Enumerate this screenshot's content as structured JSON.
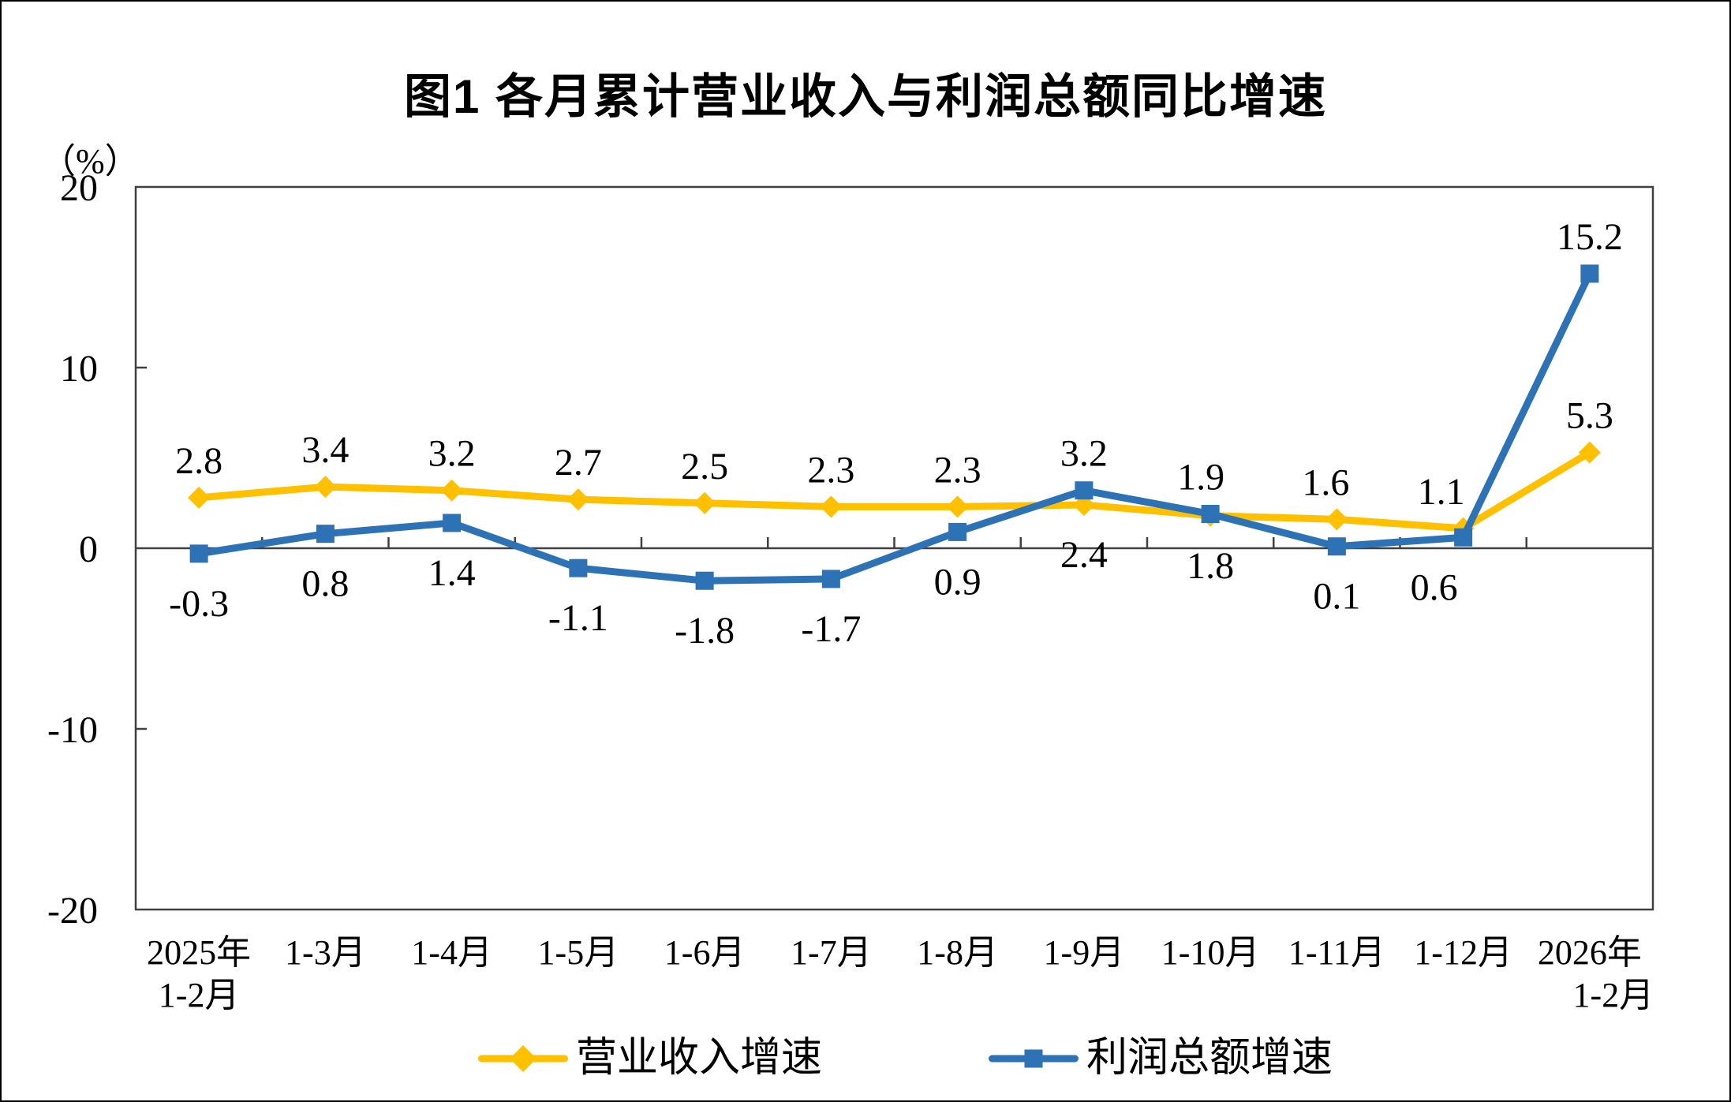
{
  "chart_data": {
    "type": "line",
    "title": "图1 各月累计营业收入与利润总额同比增速",
    "y_axis_unit_label": "（%）",
    "ylim": [
      -20,
      20
    ],
    "y_ticks": [
      20,
      10,
      0,
      -10,
      -20
    ],
    "grid": false,
    "legend_position": "bottom",
    "categories": [
      {
        "lines": [
          "2025年",
          "1-2月"
        ],
        "line2_dx": 0
      },
      {
        "lines": [
          "1-3月"
        ]
      },
      {
        "lines": [
          "1-4月"
        ]
      },
      {
        "lines": [
          "1-5月"
        ]
      },
      {
        "lines": [
          "1-6月"
        ]
      },
      {
        "lines": [
          "1-7月"
        ]
      },
      {
        "lines": [
          "1-8月"
        ]
      },
      {
        "lines": [
          "1-9月"
        ]
      },
      {
        "lines": [
          "1-10月"
        ]
      },
      {
        "lines": [
          "1-11月"
        ]
      },
      {
        "lines": [
          "1-12月"
        ]
      },
      {
        "lines": [
          "2026年",
          "1-2月"
        ],
        "line2_dx": 30
      }
    ],
    "series": [
      {
        "name": "营业收入增速",
        "color": "#FFC000",
        "marker": "diamond",
        "values": [
          2.8,
          3.4,
          3.2,
          2.7,
          2.5,
          2.3,
          2.3,
          2.4,
          1.8,
          1.6,
          1.1,
          5.3
        ],
        "label_side": [
          "above",
          "above",
          "above",
          "above",
          "above",
          "above",
          "above",
          "below",
          "below",
          "above",
          "above",
          "above"
        ],
        "label_dx": [
          0,
          0,
          0,
          0,
          0,
          0,
          0,
          0,
          0,
          -14,
          -28,
          0
        ]
      },
      {
        "name": "利润总额增速",
        "color": "#2E72B6",
        "marker": "square",
        "values": [
          -0.3,
          0.8,
          1.4,
          -1.1,
          -1.8,
          -1.7,
          0.9,
          3.2,
          1.9,
          0.1,
          0.6,
          15.2
        ],
        "label_side": [
          "below",
          "below",
          "below",
          "below",
          "below",
          "below",
          "below",
          "above",
          "above",
          "below",
          "below",
          "above"
        ],
        "label_dx": [
          0,
          0,
          0,
          0,
          0,
          0,
          0,
          0,
          -12,
          0,
          -37,
          0
        ]
      }
    ],
    "axis_color": "#404040",
    "text_color": "#000000"
  }
}
